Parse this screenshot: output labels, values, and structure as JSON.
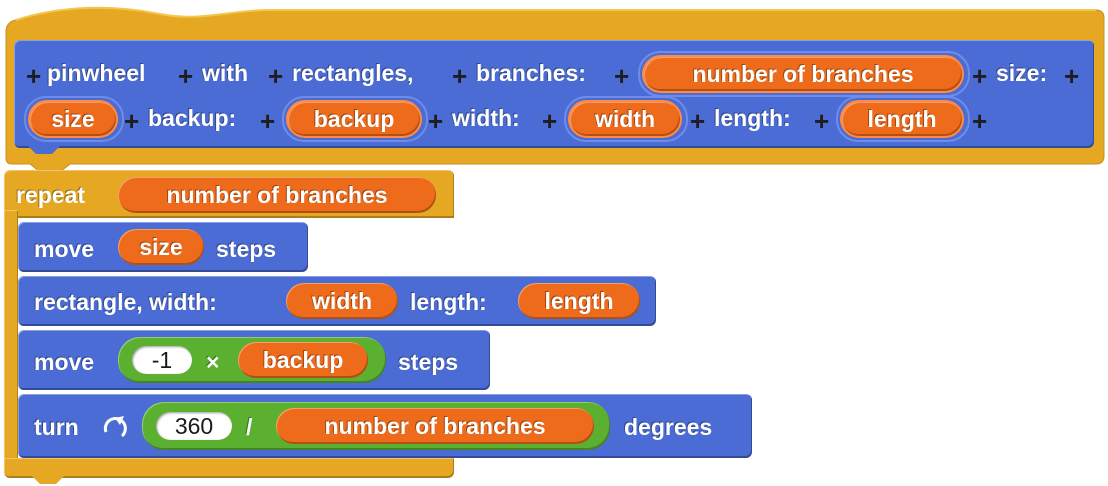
{
  "hat": {
    "line1": [
      "pinwheel",
      "with",
      "rectangles,",
      "branches:",
      "size:"
    ],
    "branches_param": "number of branches",
    "size_param": "size",
    "backup_label": "backup:",
    "backup_param": "backup",
    "width_label": "width:",
    "width_param": "width",
    "length_label": "length:",
    "length_param": "length",
    "plus": "+"
  },
  "repeat": {
    "label": "repeat",
    "count": "number of branches"
  },
  "blocks": {
    "move1": {
      "label": "move",
      "var": "size",
      "suffix": "steps"
    },
    "rect": {
      "label": "rectangle, width:",
      "width_var": "width",
      "length_label": "length:",
      "length_var": "length"
    },
    "move2": {
      "label": "move",
      "num": "-1",
      "op": "×",
      "var": "backup",
      "suffix": "steps"
    },
    "turn": {
      "label": "turn",
      "icon": "turn-clockwise-icon",
      "num": "360",
      "op": "/",
      "var": "number of branches",
      "suffix": "degrees"
    }
  },
  "colors": {
    "hat_gold": "#e6a822",
    "motion_blue": "#4a6cd4",
    "variable_orange": "#ee6b1b",
    "operator_green": "#5bb02f"
  }
}
